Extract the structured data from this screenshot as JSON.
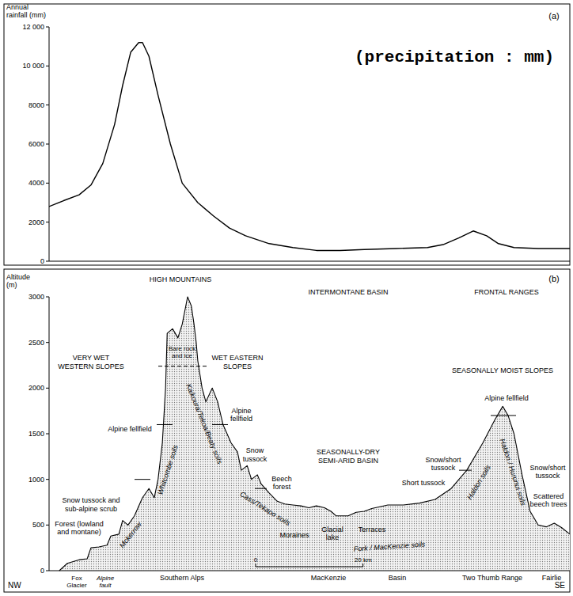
{
  "chart_data": [
    {
      "type": "line",
      "panel_label": "(a)",
      "y_label": "Annual rainfall (mm)",
      "annotations": [
        "(precipitation : mm)"
      ],
      "x": [
        0,
        2.7,
        5.6,
        7.8,
        10.0,
        12.2,
        13.7,
        15.2,
        16.7,
        17.4,
        18.6,
        20.3,
        22.6,
        24.8,
        27.7,
        30.7,
        33.6,
        36.6,
        41.0,
        45.4,
        49.8,
        54.2,
        58.7,
        64.6,
        70.5,
        73.4,
        76.4,
        79.0,
        81.5,
        83.7,
        86.6,
        91.1,
        97.0
      ],
      "values": [
        2800,
        3100,
        3400,
        3900,
        5000,
        7000,
        9000,
        10700,
        11200,
        11200,
        10500,
        8500,
        6000,
        4000,
        3000,
        2300,
        1700,
        1300,
        900,
        700,
        550,
        550,
        600,
        650,
        700,
        850,
        1200,
        1550,
        1300,
        900,
        700,
        650,
        650
      ],
      "xlim": [
        0,
        97
      ],
      "ylim": [
        0,
        12000
      ],
      "yticks": [
        0,
        2000,
        4000,
        6000,
        8000,
        {
          "value": 10000,
          "label": "10 000"
        },
        {
          "value": 12000,
          "label": "12 000"
        }
      ],
      "tick_labels": "y",
      "color": "#000000"
    },
    {
      "type": "area",
      "panel_label": "(b)",
      "y_label": "Altitude (m)",
      "x": [
        1.9,
        3.4,
        5.6,
        7.1,
        7.8,
        9.3,
        10.8,
        11.5,
        13.0,
        13.7,
        14.7,
        15.9,
        17.4,
        18.6,
        19.6,
        20.3,
        21.1,
        21.7,
        22.0,
        23.0,
        24.0,
        24.8,
        25.8,
        26.5,
        27.0,
        27.4,
        27.7,
        28.5,
        29.2,
        30.4,
        31.4,
        32.4,
        33.9,
        35.1,
        35.8,
        36.9,
        37.7,
        38.8,
        39.5,
        41.0,
        42.5,
        43.9,
        45.4,
        46.9,
        48.4,
        49.8,
        51.3,
        52.5,
        53.5,
        55.7,
        57.2,
        58.7,
        60.1,
        63.1,
        66.0,
        69.0,
        71.9,
        74.9,
        77.8,
        80.8,
        83.0,
        84.5,
        85.5,
        86.6,
        88.1,
        89.6,
        91.1,
        92.6,
        94.1,
        95.5,
        97.0
      ],
      "values": [
        0,
        80,
        120,
        130,
        250,
        260,
        280,
        380,
        400,
        550,
        500,
        600,
        800,
        900,
        800,
        1000,
        1400,
        2000,
        2600,
        2650,
        2550,
        2700,
        3000,
        2900,
        2700,
        2500,
        2300,
        2000,
        1850,
        2000,
        1850,
        1600,
        1400,
        1300,
        1100,
        1150,
        1000,
        1050,
        950,
        850,
        760,
        730,
        720,
        710,
        690,
        710,
        690,
        650,
        600,
        600,
        640,
        650,
        680,
        720,
        720,
        740,
        780,
        900,
        1100,
        1400,
        1650,
        1800,
        1700,
        1500,
        1050,
        650,
        500,
        480,
        520,
        470,
        400
      ],
      "xlim": [
        0,
        97
      ],
      "ylim": [
        0,
        3000
      ],
      "yticks": [
        0,
        500,
        1000,
        1500,
        2000,
        2500,
        3000
      ],
      "tick_labels": "y",
      "color": "#000000",
      "regions": [
        "HIGH MOUNTAINS",
        "INTERMONTANE BASIN",
        "FRONTAL RANGES"
      ],
      "zones": [
        "VERY WET WESTERN SLOPES",
        "WET EASTERN SLOPES",
        "SEASONALLY-DRY SEMI-ARID BASIN",
        "SEASONALLY MOIST SLOPES"
      ],
      "vegetation": [
        "Bare rock and ice",
        "Alpine fellfield",
        "Alpine fellfield",
        "Snow tussock and sub-alpine scrub",
        "Forest (lowland and montane)",
        "Snow tussock",
        "Beech forest",
        "Moraines",
        "Glacial lake",
        "Terraces",
        "Short tussock",
        "Snow/short tussock",
        "Alpine fellfield",
        "Snow/short tussock",
        "Scattered beech trees"
      ],
      "soils": [
        "Mckerrow",
        "Whitcombe soils",
        "Kaikoura/Tekoa/Beaty soils",
        "Cass/Tekapo soils",
        "Fork / MacKenzie soils",
        "Haldon soils",
        "Haldon / Hurunui soils"
      ],
      "places": [
        "Fox Glacier",
        "Alpine fault",
        "Southern Alps",
        "MacKenzie",
        "Basin",
        "Two Thumb Range",
        "Fairlie"
      ],
      "directions": [
        "NW",
        "SE"
      ],
      "scale_bar": {
        "ticks": [
          0,
          {
            "value": 20,
            "label": "20 km"
          }
        ]
      }
    }
  ]
}
